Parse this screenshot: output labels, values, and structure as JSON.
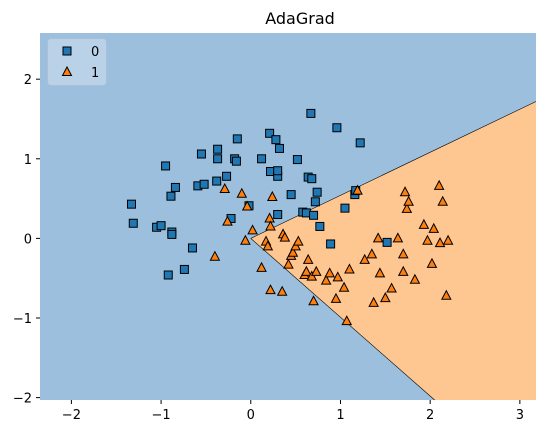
{
  "chart_data": {
    "type": "scatter",
    "title": "AdaGrad",
    "xlabel": "",
    "ylabel": "",
    "xlim": [
      -2.35,
      3.18
    ],
    "ylim": [
      -2.03,
      2.58
    ],
    "x_ticks": [
      -2,
      -1,
      0,
      1,
      2,
      3
    ],
    "y_ticks": [
      -2,
      -1,
      0,
      1,
      2
    ],
    "grid": false,
    "legend": {
      "placement": "top-left",
      "entries": [
        "0",
        "1"
      ]
    },
    "decision_regions": {
      "class_0_color": "#9bbfdd",
      "class_1_color": "#fec691",
      "boundary_line_points": [
        [
          0.0,
          0.0
        ],
        [
          3.18,
          1.72
        ]
      ],
      "boundary_line_points_2": [
        [
          0.0,
          0.0
        ],
        [
          2.05,
          -2.03
        ]
      ]
    },
    "series": [
      {
        "name": "0",
        "marker": "square",
        "color": "#1f77b4",
        "points": [
          [
            -1.33,
            0.43
          ],
          [
            -1.31,
            0.19
          ],
          [
            -1.05,
            0.14
          ],
          [
            -1.0,
            0.16
          ],
          [
            -0.95,
            0.91
          ],
          [
            -0.92,
            -0.46
          ],
          [
            -0.89,
            0.53
          ],
          [
            -0.88,
            0.08
          ],
          [
            -0.88,
            0.05
          ],
          [
            -0.84,
            0.64
          ],
          [
            -0.74,
            -0.39
          ],
          [
            -0.65,
            -0.12
          ],
          [
            -0.59,
            0.66
          ],
          [
            -0.55,
            1.06
          ],
          [
            -0.52,
            0.68
          ],
          [
            -0.37,
            1.0
          ],
          [
            -0.37,
            1.12
          ],
          [
            -0.38,
            0.72
          ],
          [
            -0.27,
            0.78
          ],
          [
            -0.22,
            0.25
          ],
          [
            -0.18,
            1.0
          ],
          [
            -0.16,
            0.97
          ],
          [
            -0.15,
            1.25
          ],
          [
            -0.02,
            0.41
          ],
          [
            0.12,
            1.0
          ],
          [
            0.21,
            1.32
          ],
          [
            0.22,
            0.84
          ],
          [
            0.28,
            1.24
          ],
          [
            0.3,
            0.78
          ],
          [
            0.3,
            0.85
          ],
          [
            0.32,
            1.13
          ],
          [
            0.3,
            0.3
          ],
          [
            0.45,
            0.55
          ],
          [
            0.52,
            0.99
          ],
          [
            0.58,
            0.33
          ],
          [
            0.62,
            0.32
          ],
          [
            0.64,
            0.77
          ],
          [
            0.67,
            1.57
          ],
          [
            0.68,
            0.75
          ],
          [
            0.7,
            0.29
          ],
          [
            0.72,
            0.46
          ],
          [
            0.74,
            0.58
          ],
          [
            0.77,
            0.15
          ],
          [
            0.89,
            -0.07
          ],
          [
            0.96,
            1.39
          ],
          [
            1.05,
            0.38
          ],
          [
            1.16,
            0.55
          ],
          [
            1.17,
            0.6
          ],
          [
            1.22,
            1.2
          ],
          [
            1.52,
            -0.05
          ]
        ]
      },
      {
        "name": "1",
        "marker": "triangle",
        "color": "#ff7f0e",
        "points": [
          [
            -0.4,
            -0.23
          ],
          [
            -0.29,
            0.62
          ],
          [
            -0.26,
            0.21
          ],
          [
            -0.1,
            0.56
          ],
          [
            -0.06,
            -0.03
          ],
          [
            -0.04,
            0.4
          ],
          [
            0.02,
            0.1
          ],
          [
            0.12,
            -0.37
          ],
          [
            0.17,
            -0.04
          ],
          [
            0.19,
            -0.1
          ],
          [
            0.21,
            0.25
          ],
          [
            0.22,
            0.15
          ],
          [
            0.22,
            -0.65
          ],
          [
            0.24,
            0.52
          ],
          [
            0.35,
            -0.67
          ],
          [
            0.36,
            0.05
          ],
          [
            0.38,
            0.01
          ],
          [
            0.42,
            -0.33
          ],
          [
            0.45,
            -0.22
          ],
          [
            0.47,
            -0.18
          ],
          [
            0.5,
            -0.1
          ],
          [
            0.53,
            -0.04
          ],
          [
            0.6,
            -0.46
          ],
          [
            0.62,
            -0.42
          ],
          [
            0.64,
            -0.27
          ],
          [
            0.68,
            -0.48
          ],
          [
            0.7,
            -0.79
          ],
          [
            0.73,
            -0.42
          ],
          [
            0.84,
            -0.53
          ],
          [
            0.88,
            -0.44
          ],
          [
            0.95,
            -0.76
          ],
          [
            0.97,
            -0.49
          ],
          [
            1.04,
            -0.62
          ],
          [
            1.07,
            -1.04
          ],
          [
            1.1,
            -0.39
          ],
          [
            1.19,
            0.6
          ],
          [
            1.27,
            -0.27
          ],
          [
            1.35,
            -0.2
          ],
          [
            1.37,
            -0.81
          ],
          [
            1.42,
            0.0
          ],
          [
            1.44,
            -0.44
          ],
          [
            1.5,
            -0.75
          ],
          [
            1.57,
            -0.63
          ],
          [
            1.64,
            0.0
          ],
          [
            1.7,
            -0.2
          ],
          [
            1.7,
            -0.42
          ],
          [
            1.72,
            0.58
          ],
          [
            1.74,
            0.37
          ],
          [
            1.76,
            0.46
          ],
          [
            1.83,
            -0.52
          ],
          [
            1.93,
            0.17
          ],
          [
            1.97,
            -0.03
          ],
          [
            2.02,
            -0.32
          ],
          [
            2.04,
            0.12
          ],
          [
            2.1,
            0.66
          ],
          [
            2.11,
            -0.06
          ],
          [
            2.14,
            0.46
          ],
          [
            2.18,
            -0.72
          ],
          [
            2.2,
            -0.03
          ]
        ]
      }
    ]
  }
}
